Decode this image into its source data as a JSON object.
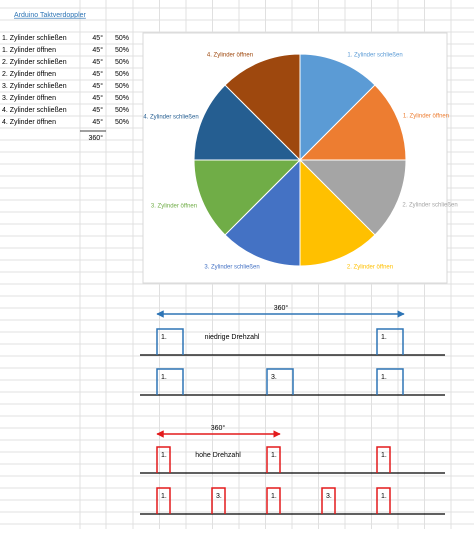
{
  "sheet": {
    "title": "Arduino Taktverdoppler",
    "rows": [
      [
        "1. Zylinder schließen",
        "45°",
        "50%"
      ],
      [
        "1. Zylinder öffnen",
        "45°",
        "50%"
      ],
      [
        "2. Zylinder schließen",
        "45°",
        "50%"
      ],
      [
        "2. Zylinder öffnen",
        "45°",
        "50%"
      ],
      [
        "3. Zylinder schließen",
        "45°",
        "50%"
      ],
      [
        "3. Zylinder öffnen",
        "45°",
        "50%"
      ],
      [
        "4. Zylinder schließen",
        "45°",
        "50%"
      ],
      [
        "4. Zylinder öffnen",
        "45°",
        "50%"
      ]
    ],
    "total": "360°"
  },
  "chart_data": {
    "type": "pie",
    "categories": [
      "1. Zylinder schließen",
      "1. Zylinder öffnen",
      "2. Zylinder schließen",
      "2. Zylinder öffnen",
      "3. Zylinder schließen",
      "3. Zylinder öffnen",
      "4. Zylinder schließen",
      "4. Zylinder öffnen"
    ],
    "values": [
      45,
      45,
      45,
      45,
      45,
      45,
      45,
      45
    ],
    "colors": [
      "#5b9bd5",
      "#ed7d31",
      "#a5a5a5",
      "#ffc000",
      "#4472c4",
      "#70ad47",
      "#255e91",
      "#9e480e"
    ]
  },
  "diagrams": [
    {
      "span": "360°",
      "color": "#2e75b6",
      "signals": [
        {
          "label": "niedrige Drehzahl",
          "pulses": [
            "1.",
            "1."
          ]
        },
        {
          "pulses": [
            "1.",
            "3.",
            "1."
          ]
        }
      ]
    },
    {
      "span": "360°",
      "color": "#e31a1c",
      "signals": [
        {
          "label": "hohe Drehzahl",
          "pulses": [
            "1.",
            "1.",
            "1."
          ]
        },
        {
          "pulses": [
            "1.",
            "3.",
            "1.",
            "3.",
            "1."
          ]
        }
      ]
    }
  ]
}
